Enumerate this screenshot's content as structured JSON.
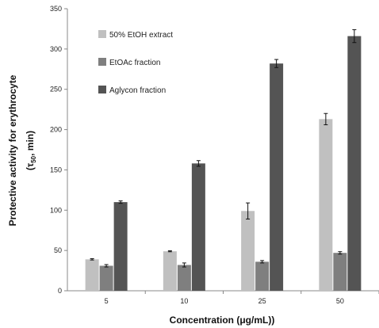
{
  "chart_data": {
    "type": "bar",
    "categories": [
      "5",
      "10",
      "25",
      "50"
    ],
    "series": [
      {
        "name": "50% EtOH extract",
        "values": [
          39,
          49,
          99,
          213
        ],
        "errors": [
          0.8,
          0.6,
          10,
          7
        ],
        "color": "#c0c0c0"
      },
      {
        "name": "EtOAc fraction",
        "values": [
          31,
          32,
          36,
          47
        ],
        "errors": [
          1.5,
          2.5,
          1.5,
          1.5
        ],
        "color": "#7f7f7f"
      },
      {
        "name": "Aglycon fraction",
        "values": [
          110,
          158,
          282,
          316
        ],
        "errors": [
          1.5,
          3.5,
          5,
          8
        ],
        "color": "#545454"
      }
    ],
    "ylim": [
      0,
      350
    ],
    "yticks": [
      0,
      50,
      100,
      150,
      200,
      250,
      300,
      350
    ],
    "ylabel_line1": "Protective activity for erythrocyte",
    "ylabel_line2_pre": "(τ",
    "ylabel_line2_sub": "50",
    "ylabel_line2_post": ", min)",
    "xlabel": "Concentration (μg/mL))",
    "legend_position": "top-left",
    "grid": false
  }
}
